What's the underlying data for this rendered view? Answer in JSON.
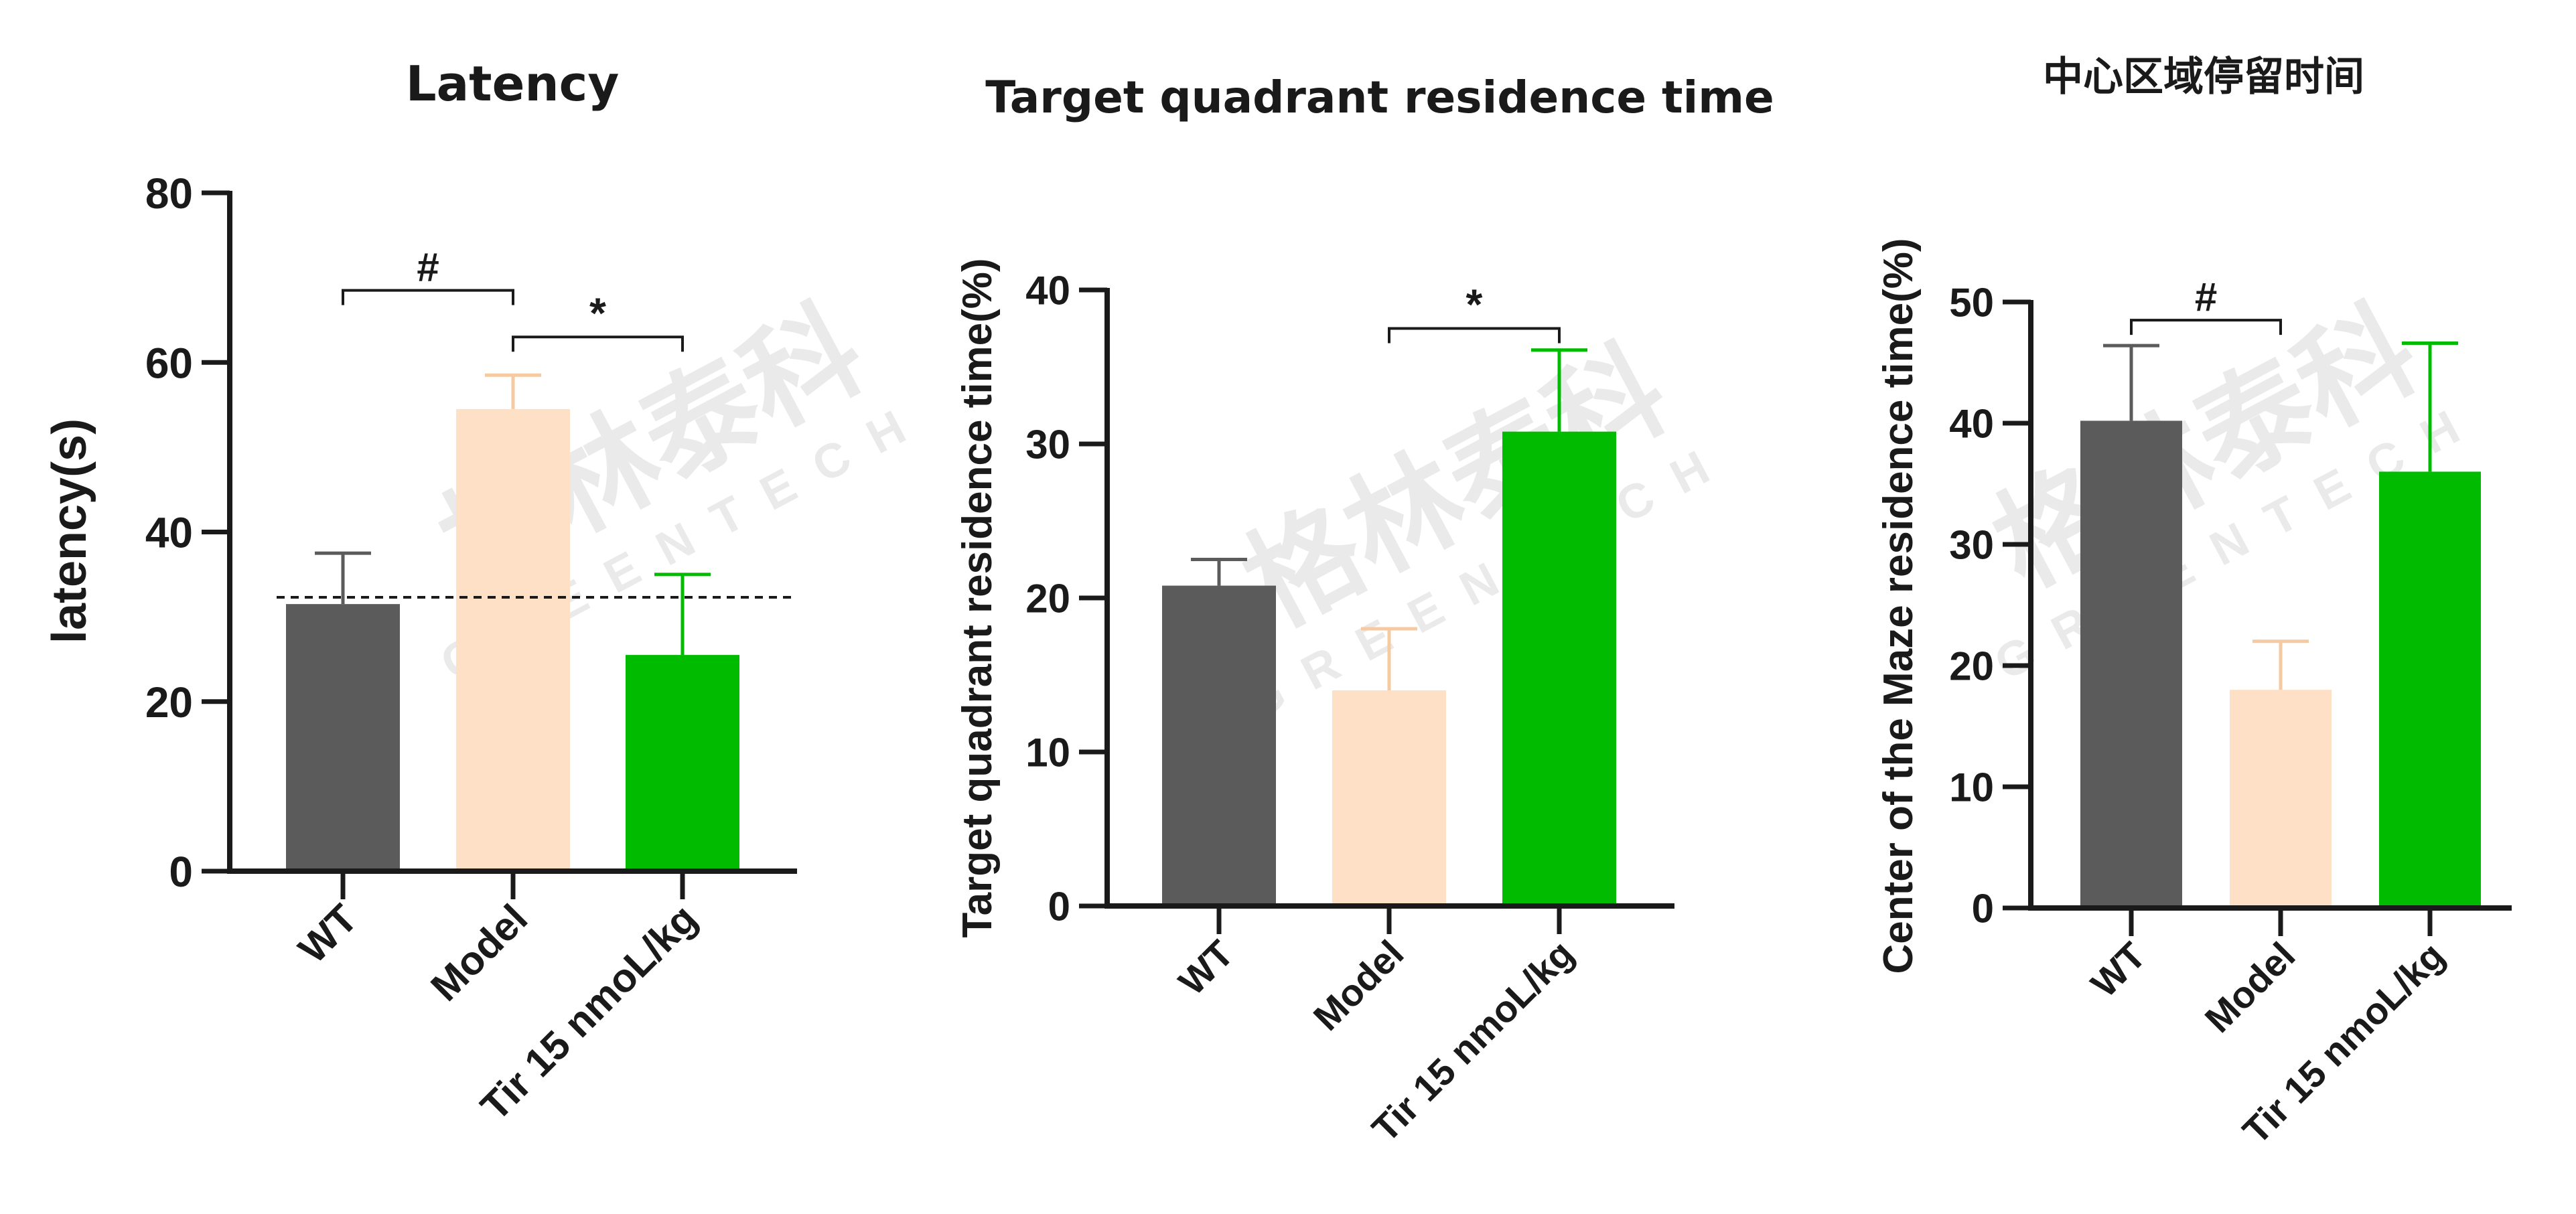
{
  "watermark": {
    "cn": "格林泰科",
    "en": "GREENTECH"
  },
  "chart_data": [
    {
      "type": "bar",
      "title": "Latency",
      "ylabel": "latency(s)",
      "ylim": [
        0,
        80
      ],
      "yticks": [
        0,
        20,
        40,
        60,
        80
      ],
      "categories": [
        "WT",
        "Model",
        "Tir 15 nmoL/kg"
      ],
      "values": [
        31.5,
        54.5,
        25.5
      ],
      "errors": [
        6,
        4,
        9.5
      ],
      "colors": [
        "#5b5b5b",
        "#fde0c5",
        "#00bb00"
      ],
      "reference_line": 32.3,
      "significance": [
        {
          "from": 0,
          "to": 1,
          "label": "#",
          "y": 68.5
        },
        {
          "from": 1,
          "to": 2,
          "label": "*",
          "y": 63
        }
      ]
    },
    {
      "type": "bar",
      "title": "Target quadrant residence time",
      "ylabel": "Target quadrant residence time(%)",
      "ylim": [
        0,
        40
      ],
      "yticks": [
        0,
        10,
        20,
        30,
        40
      ],
      "categories": [
        "WT",
        "Model",
        "Tir 15 nmoL/kg"
      ],
      "values": [
        20.8,
        14,
        30.8
      ],
      "errors": [
        1.7,
        4,
        5.3
      ],
      "colors": [
        "#5b5b5b",
        "#fde0c5",
        "#00bb00"
      ],
      "significance": [
        {
          "from": 1,
          "to": 2,
          "label": "*",
          "y": 37.5
        }
      ]
    },
    {
      "type": "bar",
      "title": "中心区域停留时间",
      "ylabel": "Center of the Maze residence time(%)",
      "ylim": [
        0,
        50
      ],
      "yticks": [
        0,
        10,
        20,
        30,
        40,
        50
      ],
      "categories": [
        "WT",
        "Model",
        "Tir 15 nmoL/kg"
      ],
      "values": [
        40.2,
        18,
        36
      ],
      "errors": [
        6.2,
        4,
        10.6
      ],
      "colors": [
        "#5b5b5b",
        "#fde0c5",
        "#00bb00"
      ],
      "significance": [
        {
          "from": 0,
          "to": 1,
          "label": "#",
          "y": 48.5
        }
      ]
    }
  ]
}
